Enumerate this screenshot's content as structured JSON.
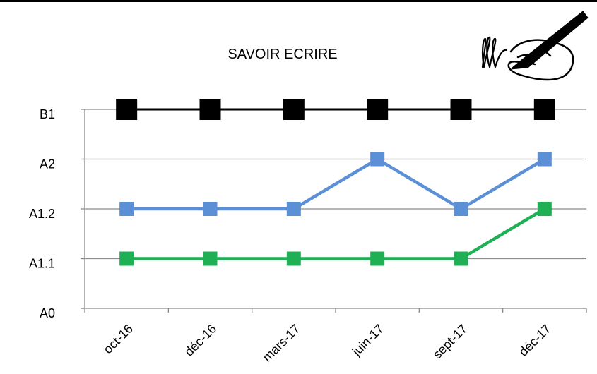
{
  "chart_data": {
    "type": "line",
    "title": "SAVOIR ECRIRE",
    "xlabel": "",
    "ylabel": "",
    "categories": [
      "oct-16",
      "déc-16",
      "mars-17",
      "juin-17",
      "sept-17",
      "déc-17"
    ],
    "y_levels": [
      "A0",
      "A1.1",
      "A1.2",
      "A2",
      "B1"
    ],
    "ylim": [
      0,
      4
    ],
    "grid": true,
    "legend": "none",
    "series": [
      {
        "values": [
          4,
          4,
          4,
          4,
          4,
          4
        ],
        "color": "#000000"
      },
      {
        "values": [
          2,
          2,
          2,
          3,
          2,
          3
        ],
        "color": "#5b8fd6"
      },
      {
        "values": [
          1,
          1,
          1,
          1,
          1,
          2
        ],
        "color": "#1fb055"
      }
    ],
    "icon": "writing-hand-icon"
  }
}
